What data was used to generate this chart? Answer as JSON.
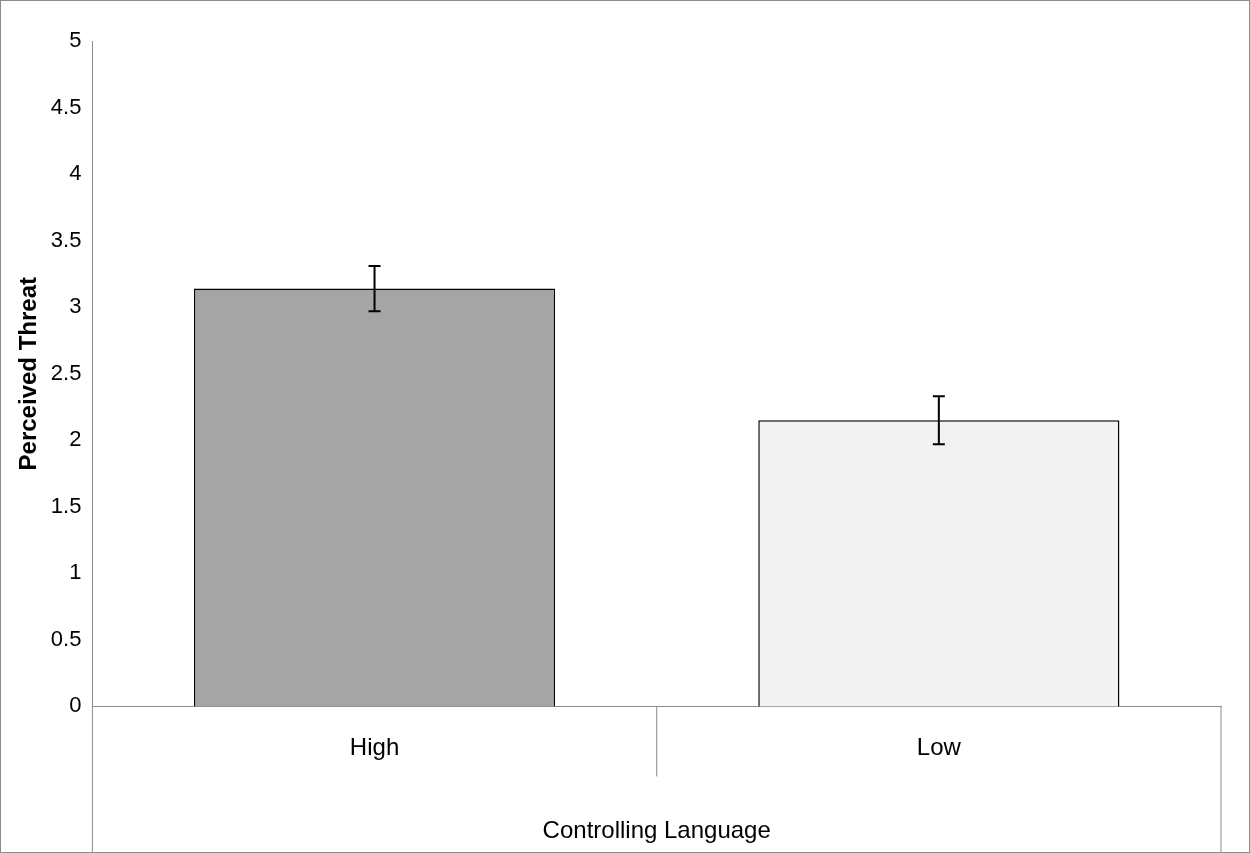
{
  "chart_data": {
    "type": "bar",
    "xlabel": "Controlling Language",
    "ylabel": "Perceived Threat",
    "categories": [
      "High",
      "Low"
    ],
    "values": [
      3.14,
      2.15
    ],
    "colors": [
      "#a5a5a5",
      "#f2f2f2"
    ],
    "errors": [
      0.17,
      0.18
    ],
    "ylim": [
      0,
      5
    ],
    "yticks": [
      0,
      0.5,
      1,
      1.5,
      2,
      2.5,
      3,
      3.5,
      4,
      4.5,
      5
    ],
    "grid": false,
    "legend": false
  }
}
